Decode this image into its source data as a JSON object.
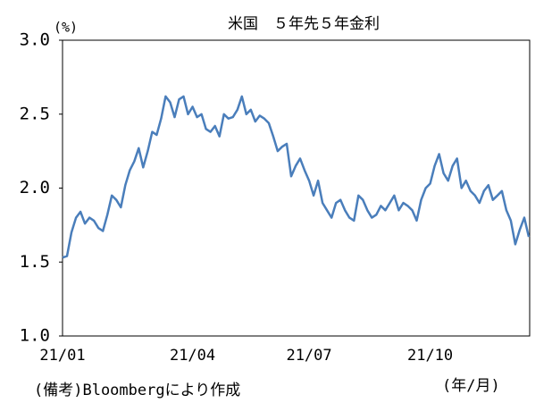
{
  "chart_data": {
    "type": "line",
    "title": "米国　５年先５年金利",
    "y_label": "(%)",
    "x_label": "(年/月)",
    "note": "(備考)Bloombergにより作成",
    "categories": [
      "21/01",
      null,
      null,
      null,
      null,
      null,
      null,
      null,
      null,
      null,
      null,
      null,
      null,
      null,
      null,
      null,
      null,
      null,
      null,
      null,
      null,
      null,
      null,
      null,
      null,
      null,
      null,
      null,
      null,
      "21/04",
      null,
      null,
      null,
      null,
      null,
      null,
      null,
      null,
      null,
      null,
      null,
      null,
      null,
      null,
      null,
      null,
      null,
      null,
      null,
      null,
      null,
      null,
      null,
      null,
      null,
      "21/07",
      null,
      null,
      null,
      null,
      null,
      null,
      null,
      null,
      null,
      null,
      null,
      null,
      null,
      null,
      null,
      null,
      null,
      null,
      null,
      null,
      null,
      null,
      null,
      null,
      null,
      null,
      "21/10",
      null,
      null,
      null,
      null,
      null,
      null,
      null,
      null,
      null,
      null,
      null,
      null,
      null,
      null,
      null,
      null,
      null,
      null,
      null,
      null,
      null,
      null
    ],
    "series": [
      {
        "color": "#4a7ebb",
        "values": [
          1.53,
          1.54,
          1.7,
          1.8,
          1.84,
          1.76,
          1.8,
          1.78,
          1.73,
          1.71,
          1.82,
          1.95,
          1.92,
          1.87,
          2.02,
          2.12,
          2.18,
          2.27,
          2.14,
          2.25,
          2.38,
          2.36,
          2.47,
          2.62,
          2.58,
          2.48,
          2.6,
          2.62,
          2.5,
          2.55,
          2.48,
          2.5,
          2.4,
          2.38,
          2.42,
          2.35,
          2.5,
          2.47,
          2.48,
          2.53,
          2.62,
          2.5,
          2.53,
          2.45,
          2.49,
          2.47,
          2.44,
          2.35,
          2.25,
          2.28,
          2.3,
          2.08,
          2.15,
          2.2,
          2.12,
          2.05,
          1.95,
          2.05,
          1.9,
          1.85,
          1.8,
          1.9,
          1.92,
          1.85,
          1.8,
          1.78,
          1.95,
          1.92,
          1.85,
          1.8,
          1.82,
          1.88,
          1.85,
          1.9,
          1.95,
          1.85,
          1.9,
          1.88,
          1.85,
          1.78,
          1.92,
          2.0,
          2.03,
          2.15,
          2.23,
          2.1,
          2.05,
          2.15,
          2.2,
          2.0,
          2.05,
          1.98,
          1.95,
          1.9,
          1.98,
          2.02,
          1.92,
          1.95,
          1.98,
          1.85,
          1.78,
          1.62,
          1.72,
          1.8,
          1.67
        ]
      }
    ],
    "ylim": [
      1.0,
      3.0
    ],
    "yticks": [
      {
        "value": 3,
        "label": "3.0"
      },
      2.5,
      {
        "value": 2,
        "label": "2.0"
      },
      1.5,
      {
        "value": 1,
        "label": "1.0"
      }
    ]
  }
}
